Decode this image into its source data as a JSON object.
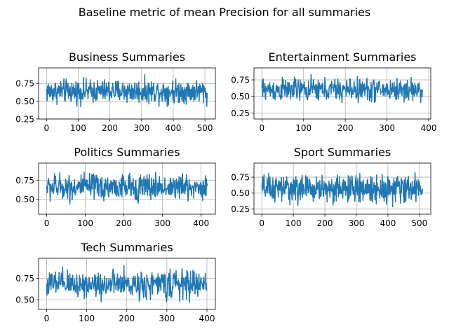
{
  "figure": {
    "title": "Baseline metric of mean Precision for all summaries"
  },
  "chart_data": [
    {
      "type": "line",
      "title": "Business Summaries",
      "xlabel": "",
      "ylabel": "",
      "xlim": [
        -25,
        533
      ],
      "ylim": [
        0.25,
        0.97
      ],
      "xticks": [
        0,
        100,
        200,
        300,
        400,
        500
      ],
      "yticks": [
        0.25,
        0.5,
        0.75
      ],
      "ytick_labels": [
        "0.25",
        "0.50",
        "0.75"
      ],
      "grid": true,
      "color": "#1f77b4",
      "n_points": 508,
      "mean": 0.64,
      "spread": 0.1,
      "y_min": 0.28,
      "y_max": 0.95
    },
    {
      "type": "line",
      "title": "Entertainment Summaries",
      "xlabel": "",
      "ylabel": "",
      "xlim": [
        -19,
        405
      ],
      "ylim": [
        0.16,
        0.93
      ],
      "xticks": [
        0,
        100,
        200,
        300,
        400
      ],
      "yticks": [
        0.25,
        0.5,
        0.75
      ],
      "ytick_labels": [
        "0.25",
        "0.50",
        "0.75"
      ],
      "grid": true,
      "color": "#1f77b4",
      "n_points": 386,
      "mean": 0.6,
      "spread": 0.11,
      "y_min": 0.19,
      "y_max": 0.9
    },
    {
      "type": "line",
      "title": "Politics Summaries",
      "xlabel": "",
      "ylabel": "",
      "xlim": [
        -21,
        437
      ],
      "ylim": [
        0.3,
        0.98
      ],
      "xticks": [
        0,
        100,
        200,
        300,
        400
      ],
      "yticks": [
        0.5,
        0.75
      ],
      "ytick_labels": [
        "0.50",
        "0.75"
      ],
      "grid": true,
      "color": "#1f77b4",
      "n_points": 417,
      "mean": 0.66,
      "spread": 0.11,
      "y_min": 0.33,
      "y_max": 0.95
    },
    {
      "type": "line",
      "title": "Sport Summaries",
      "xlabel": "",
      "ylabel": "",
      "xlim": [
        -25,
        536
      ],
      "ylim": [
        0.17,
        0.97
      ],
      "xticks": [
        0,
        100,
        200,
        300,
        400,
        500
      ],
      "yticks": [
        0.25,
        0.5,
        0.75
      ],
      "ytick_labels": [
        "0.25",
        "0.50",
        "0.75"
      ],
      "grid": true,
      "color": "#1f77b4",
      "n_points": 511,
      "mean": 0.57,
      "spread": 0.13,
      "y_min": 0.2,
      "y_max": 0.93
    },
    {
      "type": "line",
      "title": "Tech Summaries",
      "xlabel": "",
      "ylabel": "",
      "xlim": [
        -20,
        421
      ],
      "ylim": [
        0.39,
        0.98
      ],
      "xticks": [
        0,
        100,
        200,
        300,
        400
      ],
      "yticks": [
        0.5,
        0.75
      ],
      "ytick_labels": [
        "0.50",
        "0.75"
      ],
      "grid": true,
      "color": "#1f77b4",
      "n_points": 401,
      "mean": 0.68,
      "spread": 0.1,
      "y_min": 0.42,
      "y_max": 0.95
    }
  ]
}
